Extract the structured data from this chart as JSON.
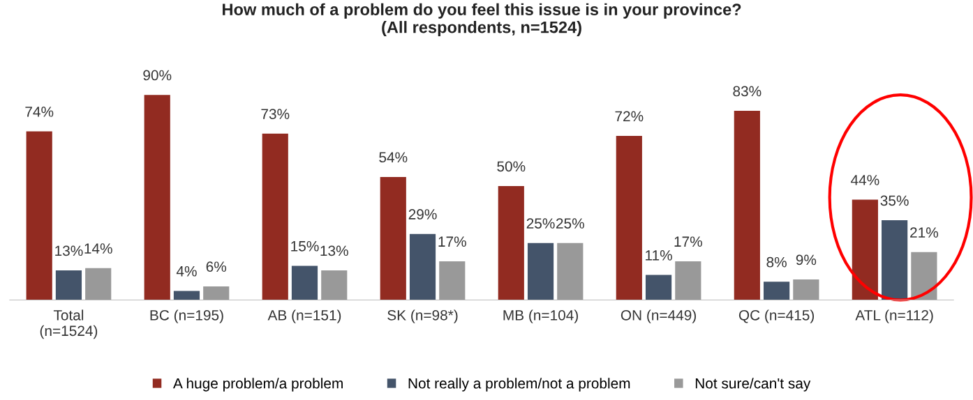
{
  "chart_data": {
    "type": "bar",
    "title": "How much of a problem do you feel this issue is in your province?\n(All respondents, n=1524)",
    "categories": [
      "Total\n(n=1524)",
      "BC (n=195)",
      "AB (n=151)",
      "SK (n=98*)",
      "MB (n=104)",
      "ON (n=449)",
      "QC (n=415)",
      "ATL (n=112)"
    ],
    "series": [
      {
        "name": "A huge problem/a problem",
        "color": "#922b21",
        "values": [
          74,
          90,
          73,
          54,
          50,
          72,
          83,
          44
        ],
        "value_labels": [
          "74%",
          "90%",
          "73%",
          "54%",
          "50%",
          "72%",
          "83%",
          "44%"
        ]
      },
      {
        "name": "Not really a problem/not a problem",
        "color": "#44546a",
        "values": [
          13,
          4,
          15,
          29,
          25,
          11,
          8,
          35
        ],
        "value_labels": [
          "13%",
          "4%",
          "15%",
          "29%",
          "25%",
          "11%",
          "8%",
          "35%"
        ]
      },
      {
        "name": "Not sure/can't say",
        "color": "#999999",
        "values": [
          14,
          6,
          13,
          17,
          25,
          17,
          9,
          21
        ],
        "value_labels": [
          "14%",
          "6%",
          "13%",
          "17%",
          "25%",
          "17%",
          "9%",
          "21%"
        ]
      }
    ],
    "legend": "bottom",
    "grid": false
  }
}
